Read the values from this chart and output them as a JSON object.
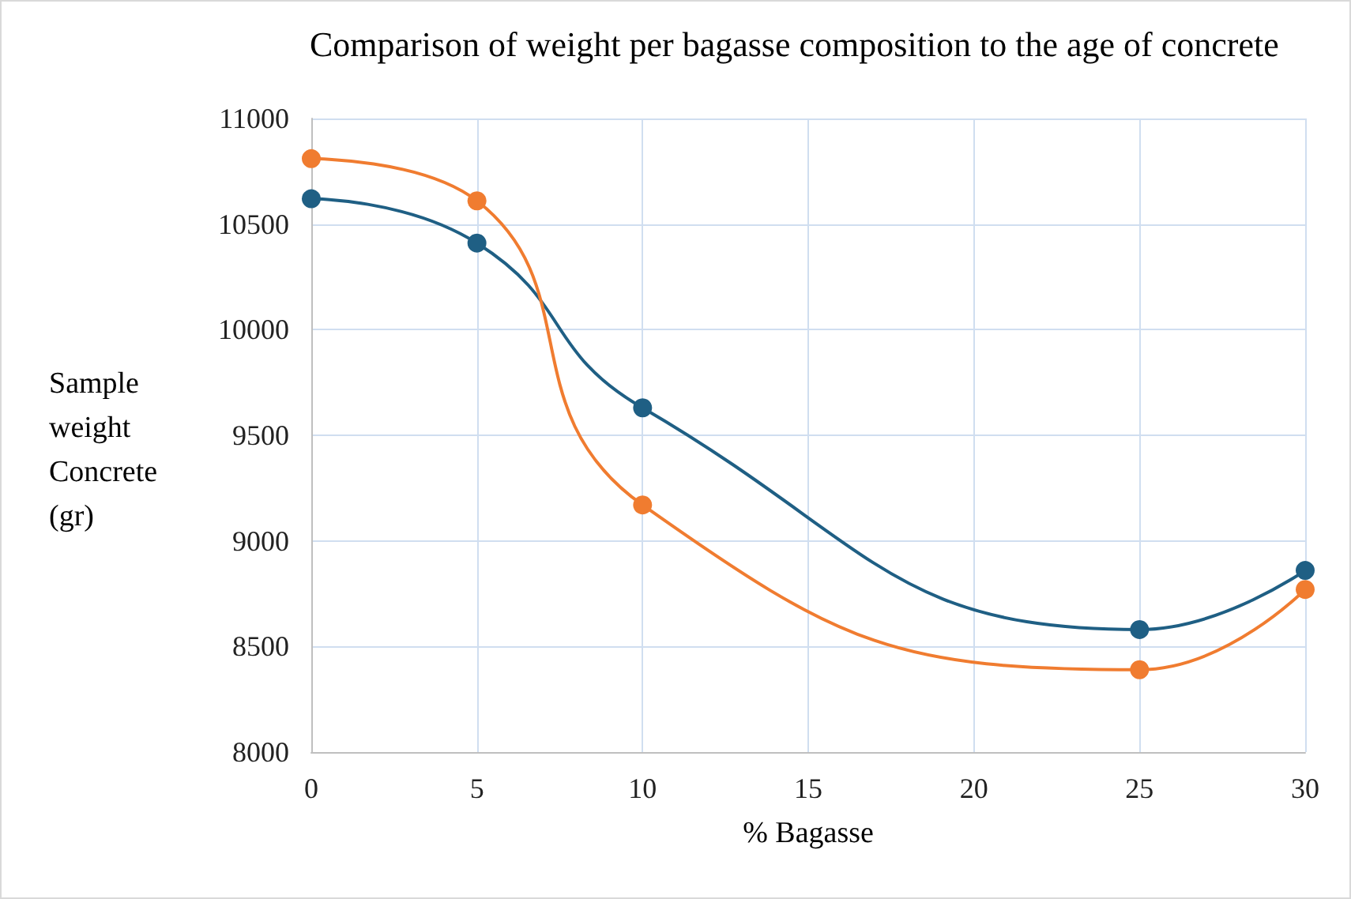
{
  "chart_data": {
    "type": "line",
    "title": "Comparison of weight per bagasse composition to the age of concrete",
    "xlabel": "% Bagasse",
    "ylabel": "Sample weight Concrete (gr)",
    "x": [
      0,
      5,
      10,
      25,
      30
    ],
    "series": [
      {
        "color": "#1f5f84",
        "values": [
          10620,
          10410,
          9630,
          8580,
          8860
        ]
      },
      {
        "color": "#f07c30",
        "values": [
          10810,
          10610,
          9170,
          8390,
          8770
        ]
      }
    ],
    "xlim": [
      0,
      30
    ],
    "xticks": [
      0,
      5,
      10,
      15,
      20,
      25,
      30
    ],
    "ylim": [
      8000,
      11000
    ],
    "yticks": [
      8000,
      8500,
      9000,
      9500,
      10000,
      10500,
      11000
    ],
    "grid": true,
    "marker": "circle",
    "line_style": "solid"
  }
}
